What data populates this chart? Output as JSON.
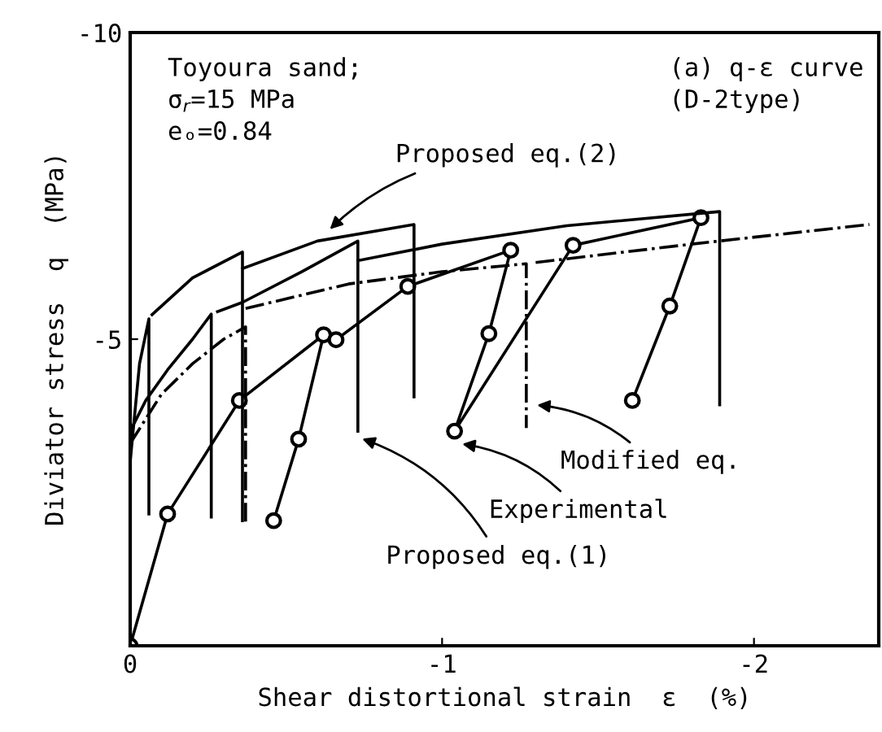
{
  "chart_data": {
    "type": "line",
    "xlabel": "Shear distortional strain  ε  (%)",
    "ylabel": "Diviator stress  q  (MPa)",
    "xlim": [
      0,
      -2.4
    ],
    "xticks": [
      0,
      -1,
      -2
    ],
    "ylim": [
      0,
      -10
    ],
    "yticks": [
      -5,
      -10
    ],
    "grid": false,
    "legend": false,
    "series": [
      {
        "color": "#000000",
        "marker": "circle",
        "line_style": "solid",
        "x": [
          0,
          -0.12,
          -0.35,
          -0.62,
          -0.54,
          -0.46,
          null,
          -0.66,
          -0.89,
          -1.22,
          -1.15,
          -1.04,
          -1.42,
          -1.83,
          -1.73,
          -1.61
        ],
        "values": [
          0,
          -2.15,
          -4.0,
          -5.07,
          -3.37,
          -2.04,
          null,
          -4.99,
          -5.86,
          -6.45,
          -5.09,
          -3.5,
          -6.53,
          -6.98,
          -5.54,
          -4.0
        ]
      },
      {
        "color": "#000000",
        "marker": "none",
        "line_style": "solid",
        "x": [
          0,
          -0.05,
          -0.12,
          -0.2,
          -0.26,
          -0.26,
          null,
          -0.28,
          -0.36,
          -0.55,
          -0.73,
          -0.73,
          null,
          -0.73,
          -1.0,
          -1.4,
          -1.89,
          -1.89
        ],
        "values": [
          -3.5,
          -4.0,
          -4.5,
          -5.0,
          -5.41,
          -2.1,
          null,
          -5.45,
          -5.6,
          -6.1,
          -6.6,
          -3.5,
          null,
          -6.28,
          -6.55,
          -6.85,
          -7.08,
          -3.93
        ]
      },
      {
        "color": "#000000",
        "marker": "none",
        "line_style": "solid",
        "x": [
          0,
          -0.03,
          -0.06,
          -0.06,
          null,
          -0.07,
          -0.2,
          -0.36,
          -0.36,
          null,
          -0.36,
          -0.6,
          -0.91,
          -0.91
        ],
        "values": [
          -3.0,
          -4.6,
          -5.33,
          -2.15,
          null,
          -5.4,
          -6.0,
          -6.42,
          -2.04,
          null,
          -6.15,
          -6.6,
          -6.87,
          -4.06
        ]
      },
      {
        "color": "#000000",
        "marker": "none",
        "line_style": "dashdot",
        "x": [
          0,
          -0.1,
          -0.2,
          -0.3,
          -0.37,
          -0.37,
          null,
          -0.37,
          -0.7,
          -1.0,
          -1.27,
          -1.27,
          null,
          -1.3,
          -1.8,
          -2.37
        ],
        "values": [
          -3.3,
          -4.1,
          -4.6,
          -5.0,
          -5.2,
          -2.0,
          null,
          -5.5,
          -5.9,
          -6.1,
          -6.23,
          -3.55,
          null,
          -6.25,
          -6.55,
          -6.87
        ]
      }
    ],
    "annotations": [
      "Toyoura sand;\nσ$_{r}$=15 MPa\neₒ=0.84",
      "(a) q-ε curve\n(D-2type)",
      {
        "text": "Proposed eq.(2)",
        "x": -0.63,
        "y": -6.74
      },
      {
        "text": "Modified eq.",
        "x": -1.29,
        "y": -3.93
      },
      {
        "text": "Experimental",
        "x": -1.05,
        "y": -3.3
      },
      {
        "text": "Proposed eq.(1)",
        "x": -0.73,
        "y": -3.4
      }
    ]
  }
}
